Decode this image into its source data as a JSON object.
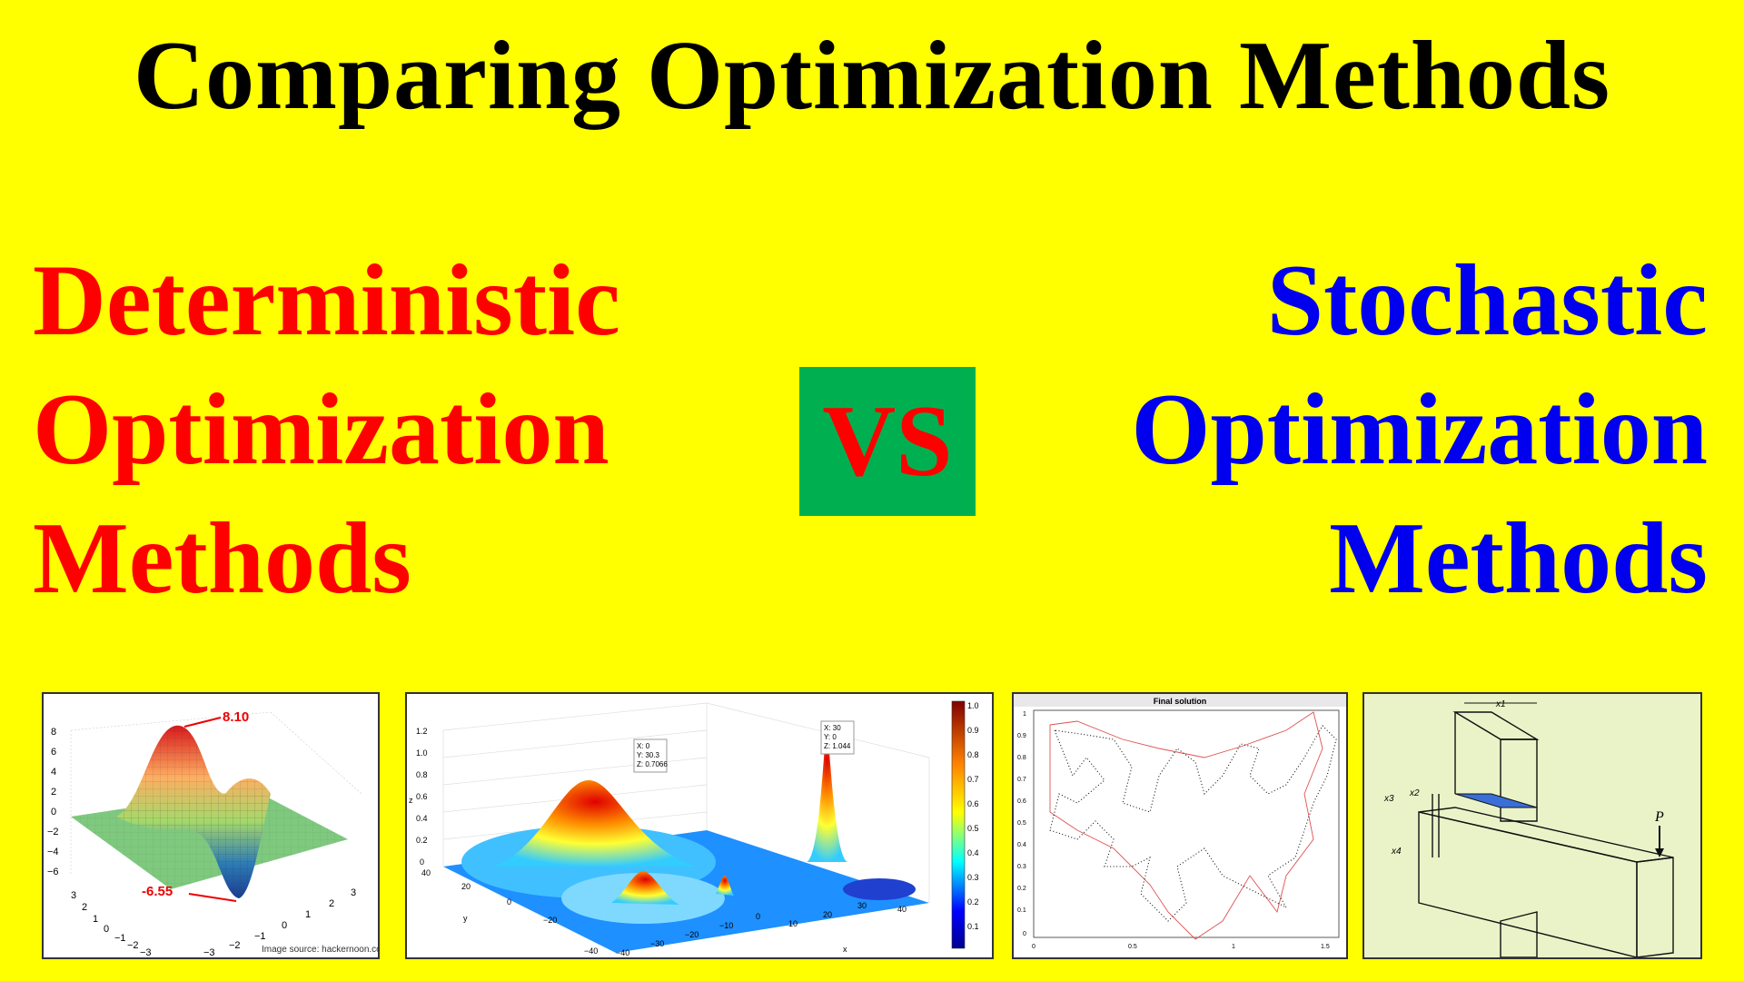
{
  "title": "Comparing Optimization Methods",
  "left_lines": [
    "Deterministic",
    "Optimization",
    "Methods"
  ],
  "right_lines": [
    "Stochastic",
    "Optimization",
    "Methods"
  ],
  "vs": "VS",
  "panel1": {
    "max_label": "8.10",
    "min_label": "-6.55",
    "source": "Image source: hackernoon.com",
    "zticks": [
      "8",
      "6",
      "4",
      "2",
      "0",
      "−2",
      "−4",
      "−6"
    ],
    "xticks": [
      "−3",
      "−2",
      "−1",
      "0",
      "1",
      "2",
      "3"
    ],
    "yticks": [
      "3",
      "2",
      "1",
      "0",
      "−1",
      "−2",
      "−3"
    ]
  },
  "panel2": {
    "zticks": [
      "1.2",
      "1.0",
      "0.8",
      "0.6",
      "0.4",
      "0.2",
      "0"
    ],
    "tip1": [
      "X: 0",
      "Y: 30.3",
      "Z: 0.7066"
    ],
    "tip2": [
      "X: 30",
      "Y: 0",
      "Z: 1.044"
    ],
    "colorbar": [
      "1.0",
      "0.9",
      "0.8",
      "0.7",
      "0.6",
      "0.5",
      "0.4",
      "0.3",
      "0.2",
      "0.1"
    ],
    "yticks": [
      "40",
      "20",
      "0",
      "−20",
      "−40"
    ],
    "xticks": [
      "−40",
      "−30",
      "−20",
      "−10",
      "0",
      "10",
      "20",
      "30",
      "40"
    ],
    "xlabel": "x",
    "ylabel": "y",
    "zlabel": "z"
  },
  "panel3": {
    "title": "Final solution",
    "yticks": [
      "1",
      "0.9",
      "0.8",
      "0.7",
      "0.6",
      "0.5",
      "0.4",
      "0.3",
      "0.2",
      "0.1",
      "0"
    ],
    "xticks": [
      "0",
      "0.5",
      "1",
      "1.5"
    ]
  },
  "panel4": {
    "load": "P",
    "x1": "x1",
    "x2": "x2",
    "x3": "x3",
    "x4": "x4"
  },
  "colors": {
    "background": "#FFFF00",
    "left": "#FF0000",
    "right": "#0000EE",
    "vs_box": "#00B050",
    "vs_text": "#FF0000"
  }
}
